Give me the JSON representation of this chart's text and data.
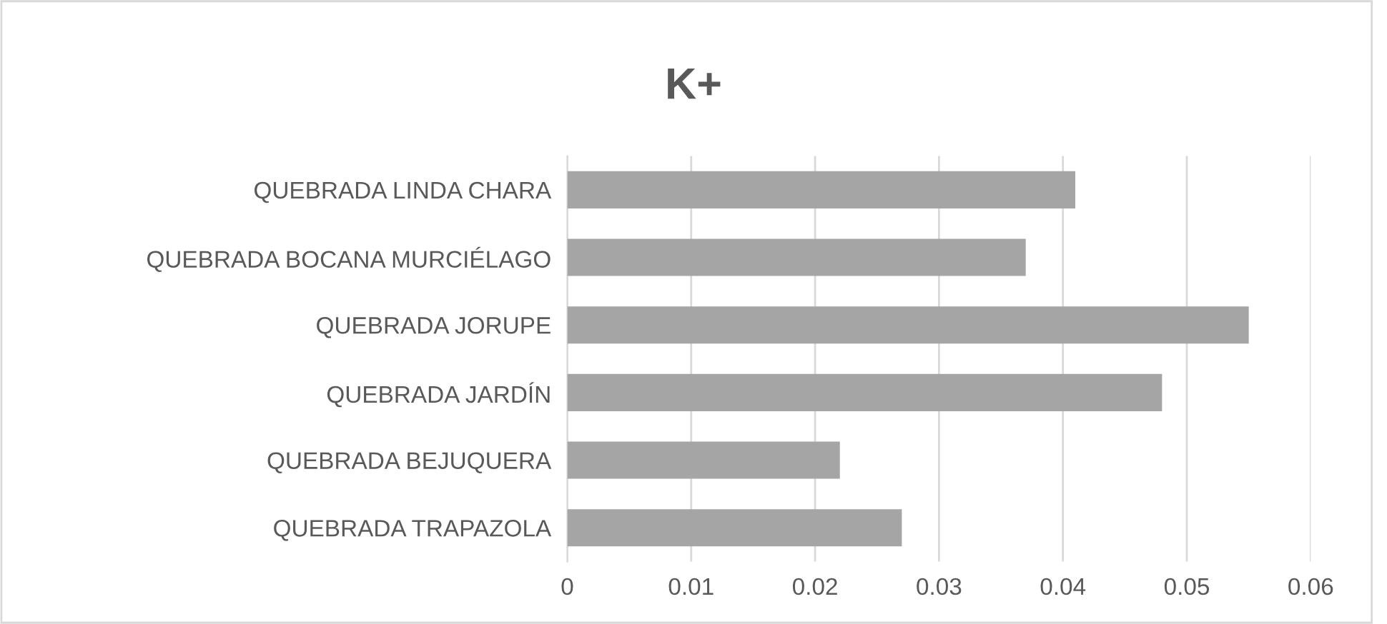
{
  "chart_data": {
    "type": "bar",
    "orientation": "horizontal",
    "title": "K+",
    "categories": [
      "QUEBRADA LINDA CHARA",
      "QUEBRADA BOCANA MURCIÉLAGO",
      "QUEBRADA JORUPE",
      "QUEBRADA JARDÍN",
      "QUEBRADA BEJUQUERA",
      "QUEBRADA TRAPAZOLA"
    ],
    "values": [
      0.041,
      0.037,
      0.055,
      0.048,
      0.022,
      0.027
    ],
    "color": "#a5a5a5",
    "xlim": [
      0,
      0.06
    ],
    "xticks": [
      0,
      0.01,
      0.02,
      0.03,
      0.04,
      0.05,
      0.06
    ],
    "grid": "x"
  }
}
